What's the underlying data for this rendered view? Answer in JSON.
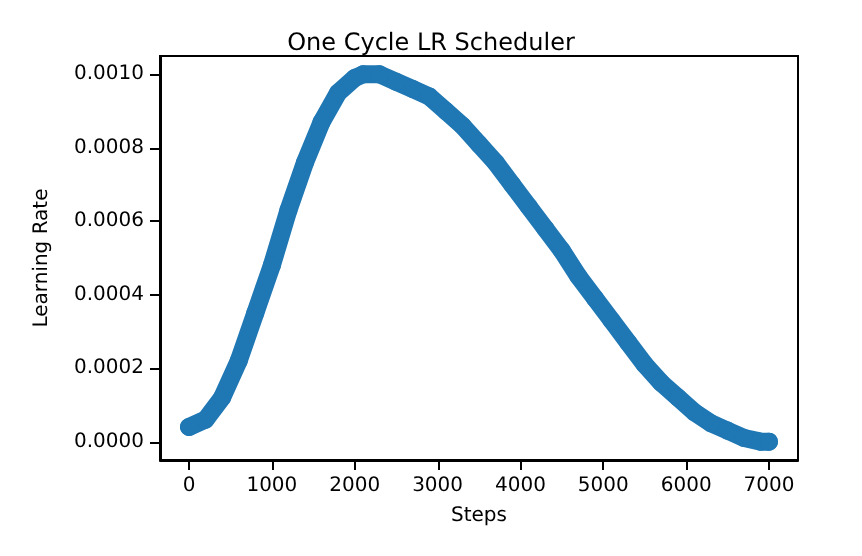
{
  "chart_data": {
    "type": "line",
    "title": "One Cycle LR Scheduler",
    "xlabel": "Steps",
    "ylabel": "Learning Rate",
    "x": [
      0,
      200,
      400,
      600,
      800,
      1000,
      1200,
      1400,
      1600,
      1800,
      2000,
      2100,
      2300,
      2500,
      2700,
      2900,
      3100,
      3300,
      3500,
      3700,
      3900,
      4100,
      4300,
      4500,
      4700,
      4900,
      5100,
      5300,
      5500,
      5700,
      5900,
      6100,
      6300,
      6500,
      6700,
      6900,
      7000
    ],
    "series": [
      {
        "color": "#1f77b4",
        "values": [
          4e-05,
          6e-05,
          0.00012,
          0.00022,
          0.00035,
          0.00048,
          0.00063,
          0.00076,
          0.00087,
          0.00095,
          0.00099,
          0.001,
          0.001,
          0.00098,
          0.00096,
          0.00094,
          0.0009,
          0.00086,
          0.00081,
          0.00076,
          0.0007,
          0.00064,
          0.00058,
          0.00052,
          0.00045,
          0.00039,
          0.00033,
          0.00027,
          0.00021,
          0.00016,
          0.00012,
          8e-05,
          5e-05,
          3e-05,
          1e-05,
          0,
          0
        ]
      }
    ],
    "xlim": [
      -350,
      7350
    ],
    "ylim": [
      -5e-05,
      0.00105
    ],
    "xticks": [
      0,
      1000,
      2000,
      3000,
      4000,
      5000,
      6000,
      7000
    ],
    "yticks": [
      {
        "value": 0,
        "label": "0.0000"
      },
      {
        "value": 0.0002,
        "label": "0.0002"
      },
      {
        "value": 0.0004,
        "label": "0.0004"
      },
      {
        "value": 0.0006,
        "label": "0.0006"
      },
      {
        "value": 0.0008,
        "label": "0.0008"
      },
      {
        "value": 0.001,
        "label": "0.0010"
      }
    ],
    "grid": false,
    "marker": "circle",
    "line_style": "solid"
  }
}
